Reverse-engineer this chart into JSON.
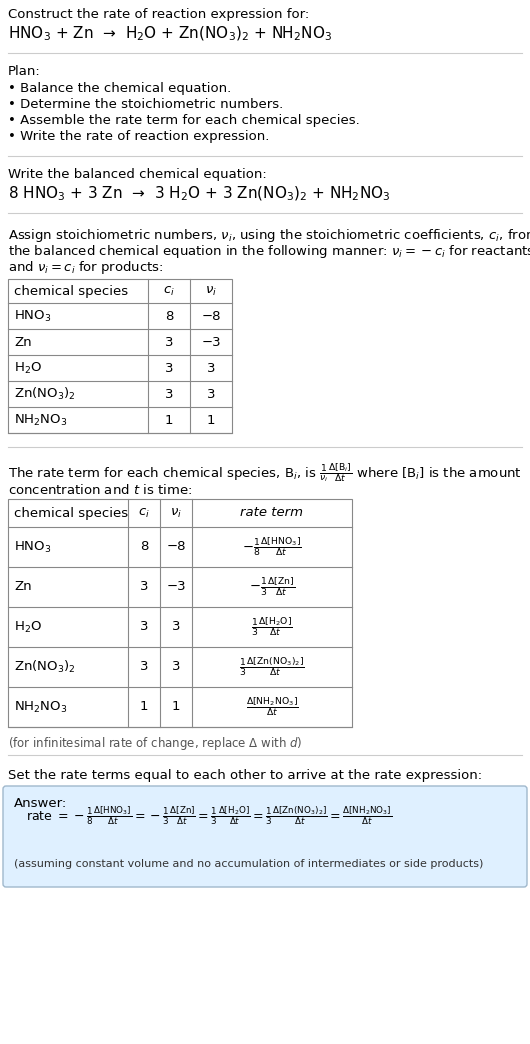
{
  "bg_color": "#ffffff",
  "text_color": "#000000",
  "title_line1": "Construct the rate of reaction expression for:",
  "reaction_unbalanced": "HNO$_3$ + Zn  →  H$_2$O + Zn(NO$_3$)$_2$ + NH$_2$NO$_3$",
  "plan_header": "Plan:",
  "plan_items": [
    "• Balance the chemical equation.",
    "• Determine the stoichiometric numbers.",
    "• Assemble the rate term for each chemical species.",
    "• Write the rate of reaction expression."
  ],
  "balanced_header": "Write the balanced chemical equation:",
  "reaction_balanced": "8 HNO$_3$ + 3 Zn  →  3 H$_2$O + 3 Zn(NO$_3$)$_2$ + NH$_2$NO$_3$",
  "stoich_lines": [
    "Assign stoichiometric numbers, $\\nu_i$, using the stoichiometric coefficients, $c_i$, from",
    "the balanced chemical equation in the following manner: $\\nu_i = -c_i$ for reactants",
    "and $\\nu_i = c_i$ for products:"
  ],
  "table1_headers": [
    "chemical species",
    "$c_i$",
    "$\\nu_i$"
  ],
  "table1_rows": [
    [
      "HNO$_3$",
      "8",
      "−8"
    ],
    [
      "Zn",
      "3",
      "−3"
    ],
    [
      "H$_2$O",
      "3",
      "3"
    ],
    [
      "Zn(NO$_3$)$_2$",
      "3",
      "3"
    ],
    [
      "NH$_2$NO$_3$",
      "1",
      "1"
    ]
  ],
  "rate_term_line1": "The rate term for each chemical species, B$_i$, is $\\frac{1}{\\nu_i}\\frac{\\Delta[{\\rm B}_i]}{\\Delta t}$ where [B$_i$] is the amount",
  "rate_term_line2": "concentration and $t$ is time:",
  "table2_headers": [
    "chemical species",
    "$c_i$",
    "$\\nu_i$",
    "rate term"
  ],
  "table2_rows": [
    [
      "HNO$_3$",
      "8",
      "−8",
      "$-\\frac{1}{8}\\frac{\\Delta[{\\rm HNO_3}]}{\\Delta t}$"
    ],
    [
      "Zn",
      "3",
      "−3",
      "$-\\frac{1}{3}\\frac{\\Delta[{\\rm Zn}]}{\\Delta t}$"
    ],
    [
      "H$_2$O",
      "3",
      "3",
      "$\\frac{1}{3}\\frac{\\Delta[{\\rm H_2O}]}{\\Delta t}$"
    ],
    [
      "Zn(NO$_3$)$_2$",
      "3",
      "3",
      "$\\frac{1}{3}\\frac{\\Delta[{\\rm Zn(NO_3)_2}]}{\\Delta t}$"
    ],
    [
      "NH$_2$NO$_3$",
      "1",
      "1",
      "$\\frac{\\Delta[{\\rm NH_2NO_3}]}{\\Delta t}$"
    ]
  ],
  "infinitesimal_note": "(for infinitesimal rate of change, replace Δ with $d$)",
  "set_equal_header": "Set the rate terms equal to each other to arrive at the rate expression:",
  "answer_label": "Answer:",
  "rate_expr_prefix": "rate $= -\\frac{1}{8}\\frac{\\Delta[{\\rm HNO_3}]}{\\Delta t} = -\\frac{1}{3}\\frac{\\Delta[{\\rm Zn}]}{\\Delta t} = \\frac{1}{3}\\frac{\\Delta[{\\rm H_2O}]}{\\Delta t} = \\frac{1}{3}\\frac{\\Delta[{\\rm Zn(NO_3)_2}]}{\\Delta t} = \\frac{\\Delta[{\\rm NH_2NO_3}]}{\\Delta t}$",
  "assumption_note": "(assuming constant volume and no accumulation of intermediates or side products)",
  "answer_box_color": "#dff0ff",
  "answer_box_border": "#a0b8cc",
  "sep_color": "#cccccc",
  "tbl_color": "#888888",
  "fs": 9.5,
  "fs_small": 8.5,
  "fs_rxn": 11.0
}
